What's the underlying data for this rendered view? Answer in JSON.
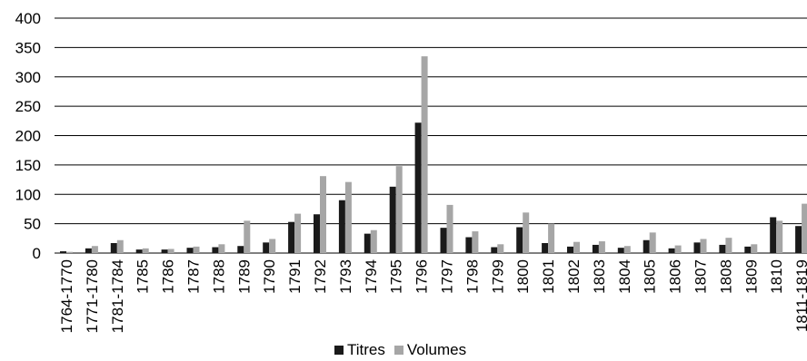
{
  "chart_data": {
    "type": "bar",
    "categories": [
      "1764-1770",
      "1771-1780",
      "1781-1784",
      "1785",
      "1786",
      "1787",
      "1788",
      "1789",
      "1790",
      "1791",
      "1792",
      "1793",
      "1794",
      "1795",
      "1796",
      "1797",
      "1798",
      "1799",
      "1800",
      "1801",
      "1802",
      "1803",
      "1804",
      "1805",
      "1806",
      "1807",
      "1808",
      "1809",
      "1810",
      "1811-1819"
    ],
    "series": [
      {
        "name": "Titres",
        "color": "#1a1a1a",
        "values": [
          3,
          8,
          17,
          6,
          6,
          9,
          10,
          12,
          18,
          53,
          66,
          90,
          33,
          113,
          222,
          43,
          27,
          10,
          44,
          17,
          11,
          14,
          9,
          22,
          8,
          18,
          14,
          11,
          61,
          46
        ]
      },
      {
        "name": "Volumes",
        "color": "#a6a6a6",
        "values": [
          2,
          12,
          22,
          8,
          7,
          11,
          15,
          55,
          24,
          67,
          131,
          121,
          39,
          148,
          335,
          82,
          37,
          15,
          69,
          50,
          19,
          20,
          12,
          35,
          13,
          24,
          26,
          15,
          55,
          84
        ]
      }
    ],
    "yticks": [
      "0",
      "50",
      "100",
      "150",
      "200",
      "250",
      "300",
      "350",
      "400"
    ],
    "ylim": [
      0,
      400
    ],
    "grid": true,
    "legend_position": "bottom"
  }
}
